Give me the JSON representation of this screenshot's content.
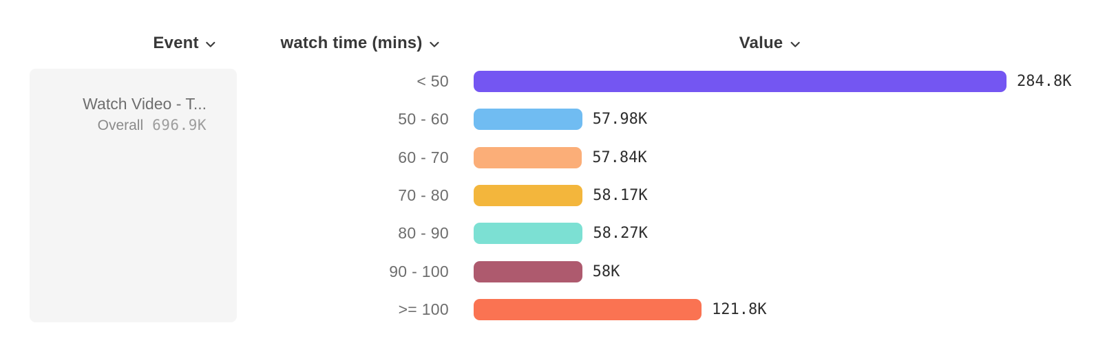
{
  "header": {
    "columns": [
      {
        "id": "event",
        "label": "Event"
      },
      {
        "id": "breakdown",
        "label": "watch time (mins)"
      },
      {
        "id": "value",
        "label": "Value"
      }
    ]
  },
  "event_card": {
    "title": "Watch Video - T...",
    "overall_label": "Overall",
    "overall_value": "696.9K"
  },
  "chart_data": {
    "type": "bar",
    "orientation": "horizontal",
    "title": "",
    "xlabel": "Value",
    "ylabel": "watch time (mins)",
    "categories": [
      "< 50",
      "50 - 60",
      "60 - 70",
      "70 - 80",
      "80 - 90",
      "90 - 100",
      ">= 100"
    ],
    "values": [
      284800,
      57980,
      57840,
      58170,
      58270,
      58000,
      121800
    ],
    "value_labels": [
      "284.8K",
      "57.98K",
      "57.84K",
      "58.17K",
      "58.27K",
      "58K",
      "121.8K"
    ],
    "bar_colors": [
      "#7456f2",
      "#70bcf2",
      "#fbae78",
      "#f3b63c",
      "#7ce0d3",
      "#ae5a6e",
      "#fa7352"
    ],
    "xlim": [
      0,
      284800
    ],
    "grid": false,
    "legend": "none"
  },
  "colors": {
    "header_text": "#383838",
    "row_label": "#6d6d6d",
    "value_text": "#2e2e2e",
    "card_bg": "#f5f5f5",
    "chevron": "#3c3c3c"
  },
  "icons": {
    "dropdown": "chevron-down"
  }
}
